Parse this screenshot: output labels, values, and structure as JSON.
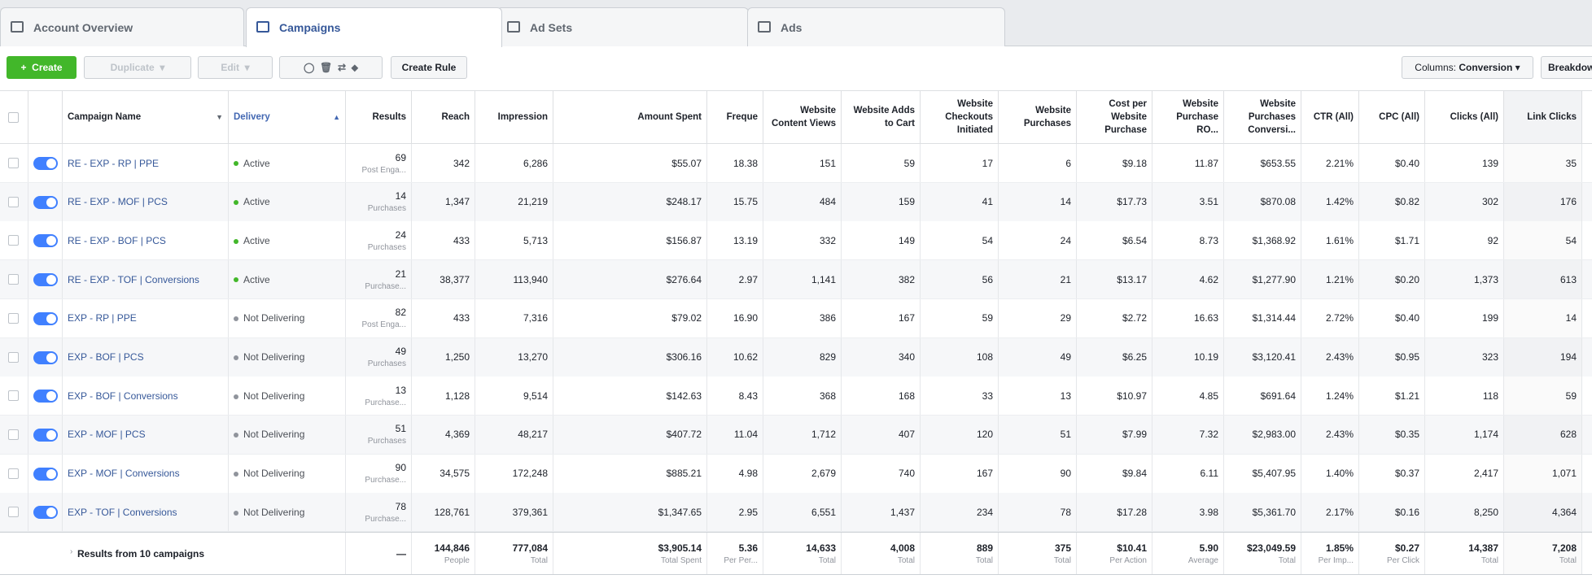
{
  "tabs": [
    "Account Overview",
    "Campaigns",
    "Ad Sets",
    "Ads"
  ],
  "toolbar": {
    "create": "Create",
    "duplicate": "Duplicate",
    "edit": "Edit",
    "create_rule": "Create Rule",
    "columns_label": "Columns:",
    "columns_value": "Conversion",
    "breakdown": "Breakdown"
  },
  "table": {
    "columns": [
      "Campaign Name",
      "Delivery",
      "Results",
      "Reach",
      "Impression",
      "Amount Spent",
      "Freque",
      "Website Content Views",
      "Website Adds to Cart",
      "Website Checkouts Initiated",
      "Website Purchases",
      "Cost per Website Purchase",
      "Website Purchase RO...",
      "Website Purchases Conversi...",
      "CTR (All)",
      "CPC (All)",
      "Clicks (All)",
      "Link Clicks"
    ],
    "rows": [
      {
        "name": "RE - EXP - RP | PPE",
        "delivery": "Active",
        "results": "69",
        "results_label": "Post Enga...",
        "values": [
          "342",
          "6,286",
          "$55.07",
          "18.38",
          "151",
          "59",
          "17",
          "6",
          "$9.18",
          "11.87",
          "$653.55",
          "2.21%",
          "$0.40",
          "139",
          "35"
        ]
      },
      {
        "name": "RE - EXP - MOF | PCS",
        "delivery": "Active",
        "results": "14",
        "results_label": "Purchases",
        "values": [
          "1,347",
          "21,219",
          "$248.17",
          "15.75",
          "484",
          "159",
          "41",
          "14",
          "$17.73",
          "3.51",
          "$870.08",
          "1.42%",
          "$0.82",
          "302",
          "176"
        ]
      },
      {
        "name": "RE - EXP - BOF | PCS",
        "delivery": "Active",
        "results": "24",
        "results_label": "Purchases",
        "values": [
          "433",
          "5,713",
          "$156.87",
          "13.19",
          "332",
          "149",
          "54",
          "24",
          "$6.54",
          "8.73",
          "$1,368.92",
          "1.61%",
          "$1.71",
          "92",
          "54"
        ]
      },
      {
        "name": "RE - EXP - TOF | Conversions",
        "delivery": "Active",
        "results": "21",
        "results_label": "Purchase...",
        "values": [
          "38,377",
          "113,940",
          "$276.64",
          "2.97",
          "1,141",
          "382",
          "56",
          "21",
          "$13.17",
          "4.62",
          "$1,277.90",
          "1.21%",
          "$0.20",
          "1,373",
          "613"
        ]
      },
      {
        "name": "EXP - RP | PPE",
        "delivery": "Not Delivering",
        "results": "82",
        "results_label": "Post Enga...",
        "values": [
          "433",
          "7,316",
          "$79.02",
          "16.90",
          "386",
          "167",
          "59",
          "29",
          "$2.72",
          "16.63",
          "$1,314.44",
          "2.72%",
          "$0.40",
          "199",
          "14"
        ]
      },
      {
        "name": "EXP - BOF | PCS",
        "delivery": "Not Delivering",
        "results": "49",
        "results_label": "Purchases",
        "values": [
          "1,250",
          "13,270",
          "$306.16",
          "10.62",
          "829",
          "340",
          "108",
          "49",
          "$6.25",
          "10.19",
          "$3,120.41",
          "2.43%",
          "$0.95",
          "323",
          "194"
        ]
      },
      {
        "name": "EXP - BOF | Conversions",
        "delivery": "Not Delivering",
        "results": "13",
        "results_label": "Purchase...",
        "values": [
          "1,128",
          "9,514",
          "$142.63",
          "8.43",
          "368",
          "168",
          "33",
          "13",
          "$10.97",
          "4.85",
          "$691.64",
          "1.24%",
          "$1.21",
          "118",
          "59"
        ]
      },
      {
        "name": "EXP - MOF | PCS",
        "delivery": "Not Delivering",
        "results": "51",
        "results_label": "Purchases",
        "values": [
          "4,369",
          "48,217",
          "$407.72",
          "11.04",
          "1,712",
          "407",
          "120",
          "51",
          "$7.99",
          "7.32",
          "$2,983.00",
          "2.43%",
          "$0.35",
          "1,174",
          "628"
        ]
      },
      {
        "name": "EXP - MOF | Conversions",
        "delivery": "Not Delivering",
        "results": "90",
        "results_label": "Purchase...",
        "values": [
          "34,575",
          "172,248",
          "$885.21",
          "4.98",
          "2,679",
          "740",
          "167",
          "90",
          "$9.84",
          "6.11",
          "$5,407.95",
          "1.40%",
          "$0.37",
          "2,417",
          "1,071"
        ]
      },
      {
        "name": "EXP - TOF | Conversions",
        "delivery": "Not Delivering",
        "results": "78",
        "results_label": "Purchase...",
        "values": [
          "128,761",
          "379,361",
          "$1,347.65",
          "2.95",
          "6,551",
          "1,437",
          "234",
          "78",
          "$17.28",
          "3.98",
          "$5,361.70",
          "2.17%",
          "$0.16",
          "8,250",
          "4,364"
        ]
      }
    ],
    "summary": {
      "label": "Results from 10 campaigns",
      "results": "—",
      "values": [
        {
          "value": "144,846",
          "sub": "People"
        },
        {
          "value": "777,084",
          "sub": "Total"
        },
        {
          "value": "$3,905.14",
          "sub": "Total Spent"
        },
        {
          "value": "5.36",
          "sub": "Per Per..."
        },
        {
          "value": "14,633",
          "sub": "Total"
        },
        {
          "value": "4,008",
          "sub": "Total"
        },
        {
          "value": "889",
          "sub": "Total"
        },
        {
          "value": "375",
          "sub": "Total"
        },
        {
          "value": "$10.41",
          "sub": "Per Action"
        },
        {
          "value": "5.90",
          "sub": "Average"
        },
        {
          "value": "$23,049.59",
          "sub": "Total"
        },
        {
          "value": "1.85%",
          "sub": "Per Imp..."
        },
        {
          "value": "$0.27",
          "sub": "Per Click"
        },
        {
          "value": "14,387",
          "sub": "Total"
        },
        {
          "value": "7,208",
          "sub": "Total"
        }
      ]
    }
  }
}
